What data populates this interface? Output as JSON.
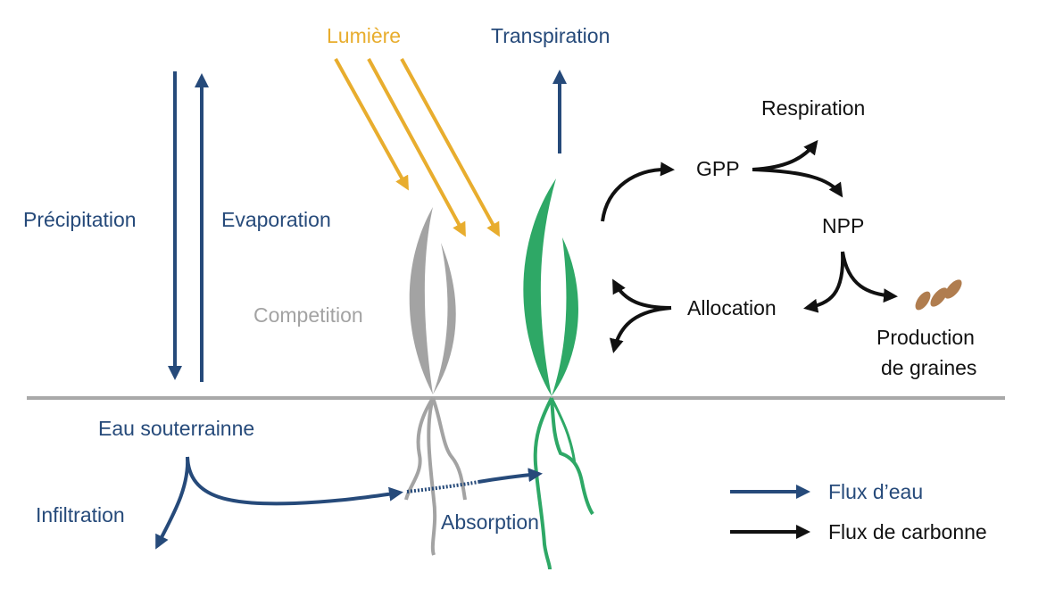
{
  "colors": {
    "water": "#264a7a",
    "light": "#e8ad2e",
    "carbon": "#111111",
    "competitor": "#a3a3a3",
    "plant": "#2ea866",
    "ground": "#a9a9a9",
    "seed": "#b07d4f"
  },
  "labels": {
    "light": "Lumière",
    "transpiration": "Transpiration",
    "precipitation": "Précipitation",
    "evaporation": "Evaporation",
    "competition": "Competition",
    "groundwater": "Eau souterrainne",
    "infiltration": "Infiltration",
    "absorption": "Absorption",
    "respiration": "Respiration",
    "gpp": "GPP",
    "npp": "NPP",
    "allocation": "Allocation",
    "seed_production_line1": "Production",
    "seed_production_line2": "de graines"
  },
  "legend": {
    "water_flux": "Flux d’eau",
    "carbon_flux": "Flux de carbonne"
  },
  "icons": {
    "seeds": "seeds-icon",
    "competitor_plant": "competitor-plant-icon",
    "plant": "plant-icon"
  }
}
